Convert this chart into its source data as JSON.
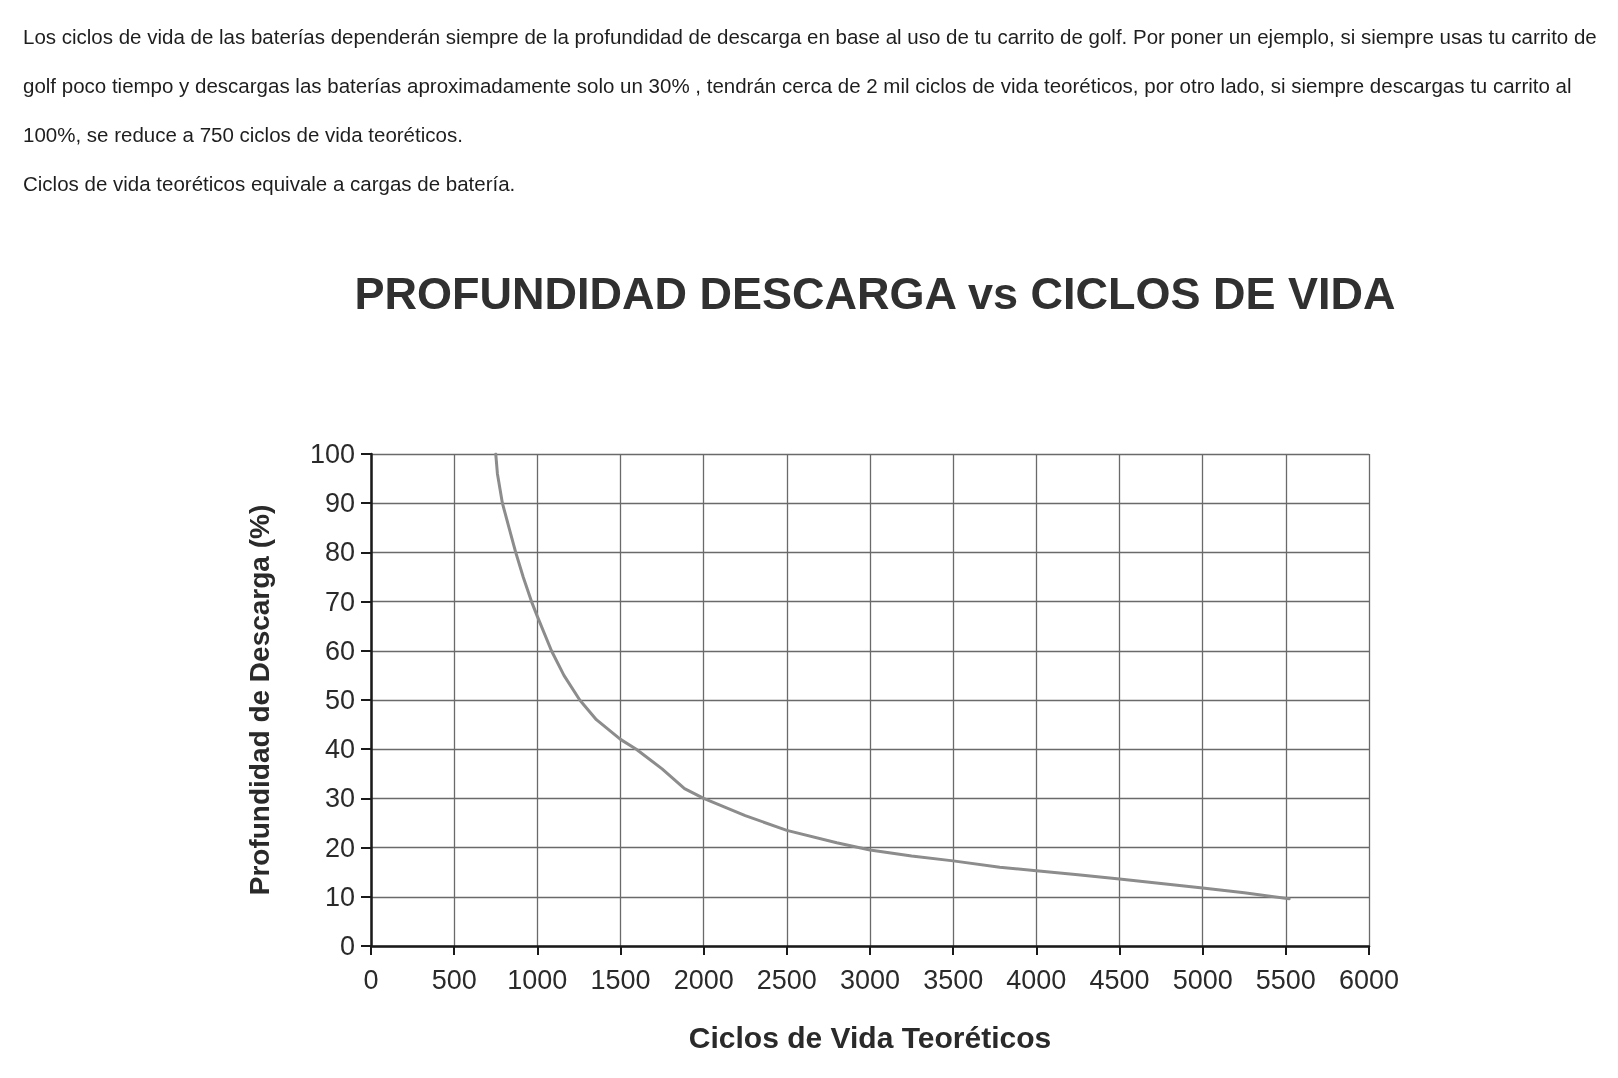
{
  "chart_data": {
    "type": "line",
    "title": "PROFUNDIDAD DESCARGA vs CICLOS DE VIDA",
    "xlabel": "Ciclos de Vida Teoréticos",
    "ylabel": "Profundidad de Descarga (%)",
    "annotations": [
      "Los ciclos de vida de las baterías dependerán siempre de la profundidad de descarga en base al uso de tu carrito de golf. Por poner un ejemplo, si siempre usas tu carrito de golf poco tiempo y descargas las baterías aproximadamente solo un 30% , tendrán cerca de 2 mil ciclos de vida teoréticos, por otro lado, si siempre descargas tu carrito al 100%, se reduce a 750 ciclos de vida teoréticos.",
      "Ciclos de vida teoréticos equivale a cargas de batería."
    ],
    "x": [
      750,
      760,
      790,
      830,
      870,
      915,
      965,
      1000,
      1085,
      1160,
      1255,
      1355,
      1500,
      1595,
      1750,
      1885,
      2000,
      2250,
      2500,
      2800,
      3000,
      3250,
      3500,
      3780,
      4000,
      4250,
      4500,
      4750,
      5000,
      5250,
      5520
    ],
    "values": [
      100,
      96,
      90,
      85,
      80,
      75,
      70,
      67,
      60,
      55,
      50,
      46,
      42,
      40,
      36,
      32,
      30,
      26.5,
      23.5,
      21,
      19.5,
      18.3,
      17.3,
      16,
      15.3,
      14.5,
      13.6,
      12.7,
      11.8,
      10.8,
      9.6
    ],
    "color": "#8c8c8c",
    "marker": "none",
    "line_style": "solid",
    "xlim": [
      0,
      6000
    ],
    "xticks": [
      0,
      500,
      1000,
      1500,
      2000,
      2500,
      3000,
      3500,
      4000,
      4500,
      5000,
      5500,
      6000
    ],
    "ylim": [
      0,
      100
    ],
    "yticks": [
      0,
      10,
      20,
      30,
      40,
      50,
      60,
      70,
      80,
      90,
      100
    ],
    "grid": true
  }
}
